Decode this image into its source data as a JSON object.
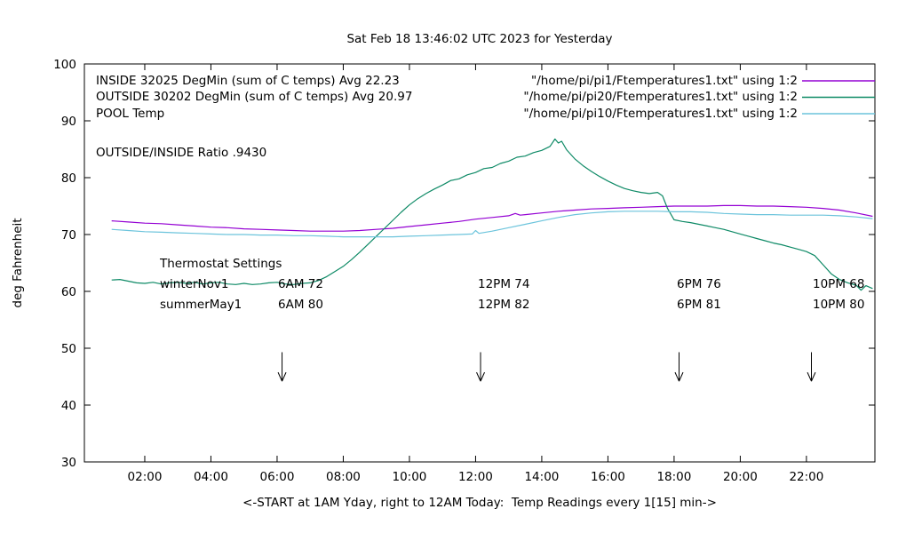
{
  "title": "Sat Feb 18 13:46:02 UTC 2023 for Yesterday",
  "axes": {
    "ylabel": "deg Fahrenheit",
    "xlabel": "<-START at 1AM Yday, right to 12AM Today:  Temp Readings every 1[15] min->"
  },
  "legend": {
    "rows": [
      {
        "label": "INSIDE 32025 DegMin (sum of C temps) Avg 22.23",
        "file": "\"/home/pi/pi1/Ftemperatures1.txt\" using 1:2",
        "color": "#9400d3"
      },
      {
        "label": "OUTSIDE 30202 DegMin (sum of C temps) Avg 20.97",
        "file": "\"/home/pi/pi20/Ftemperatures1.txt\" using 1:2",
        "color": "#0e8a66"
      },
      {
        "label": "POOL Temp",
        "file": "\"/home/pi/pi10/Ftemperatures1.txt\" using 1:2",
        "color": "#6cc4dc"
      }
    ]
  },
  "ratio_text": "OUTSIDE/INSIDE Ratio .9430",
  "thermostat": {
    "header": "Thermostat Settings",
    "rows": [
      {
        "name": "winterNov1",
        "c1": "6AM 72",
        "c2": "12PM 74",
        "c3": "6PM 76",
        "c4": "10PM 68"
      },
      {
        "name": "summerMay1",
        "c1": "6AM 80",
        "c2": "12PM 82",
        "c3": "6PM 81",
        "c4": "10PM 80"
      }
    ]
  },
  "chart_data": {
    "type": "line",
    "title": "Sat Feb 18 13:46:02 UTC 2023 for Yesterday",
    "xlabel": "<-START at 1AM Yday, right to 12AM Today:  Temp Readings every 1[15] min->",
    "ylabel": "deg Fahrenheit",
    "x_range": [
      0.175,
      24.07
    ],
    "y_range": [
      30,
      100
    ],
    "x_ticks": [
      {
        "h": 2,
        "label": "02:00"
      },
      {
        "h": 4,
        "label": "04:00"
      },
      {
        "h": 6,
        "label": "06:00"
      },
      {
        "h": 8,
        "label": "08:00"
      },
      {
        "h": 10,
        "label": "10:00"
      },
      {
        "h": 12,
        "label": "12:00"
      },
      {
        "h": 14,
        "label": "14:00"
      },
      {
        "h": 16,
        "label": "16:00"
      },
      {
        "h": 18,
        "label": "18:00"
      },
      {
        "h": 20,
        "label": "20:00"
      },
      {
        "h": 22,
        "label": "22:00"
      }
    ],
    "y_ticks": [
      30,
      40,
      50,
      60,
      70,
      80,
      90,
      100
    ],
    "arrows": {
      "x_hours": [
        6.15,
        12.15,
        18.15,
        22.15
      ],
      "y_from": 49.3,
      "y_to": 44.2
    },
    "series": [
      {
        "name": "INSIDE",
        "color": "#9400d3",
        "points": [
          [
            1,
            72.4
          ],
          [
            1.5,
            72.2
          ],
          [
            2,
            72.0
          ],
          [
            2.5,
            71.9
          ],
          [
            3,
            71.7
          ],
          [
            3.5,
            71.5
          ],
          [
            4,
            71.3
          ],
          [
            4.5,
            71.2
          ],
          [
            5,
            71.0
          ],
          [
            5.5,
            70.9
          ],
          [
            6,
            70.8
          ],
          [
            6.5,
            70.7
          ],
          [
            7,
            70.6
          ],
          [
            7.5,
            70.6
          ],
          [
            8,
            70.6
          ],
          [
            8.5,
            70.7
          ],
          [
            9,
            70.9
          ],
          [
            9.5,
            71.1
          ],
          [
            10,
            71.4
          ],
          [
            10.5,
            71.7
          ],
          [
            11,
            72.0
          ],
          [
            11.5,
            72.3
          ],
          [
            12,
            72.7
          ],
          [
            12.5,
            73.0
          ],
          [
            13,
            73.3
          ],
          [
            13.2,
            73.7
          ],
          [
            13.35,
            73.4
          ],
          [
            13.5,
            73.5
          ],
          [
            14,
            73.8
          ],
          [
            14.5,
            74.1
          ],
          [
            15,
            74.3
          ],
          [
            15.5,
            74.5
          ],
          [
            16,
            74.6
          ],
          [
            16.5,
            74.7
          ],
          [
            17,
            74.8
          ],
          [
            17.5,
            74.9
          ],
          [
            18,
            75.0
          ],
          [
            18.5,
            75.0
          ],
          [
            19,
            75.0
          ],
          [
            19.5,
            75.1
          ],
          [
            20,
            75.1
          ],
          [
            20.5,
            75.0
          ],
          [
            21,
            75.0
          ],
          [
            21.5,
            74.9
          ],
          [
            22,
            74.8
          ],
          [
            22.5,
            74.6
          ],
          [
            23,
            74.3
          ],
          [
            23.5,
            73.8
          ],
          [
            24,
            73.2
          ]
        ]
      },
      {
        "name": "OUTSIDE",
        "color": "#0e8a66",
        "points": [
          [
            1,
            62.0
          ],
          [
            1.25,
            62.1
          ],
          [
            1.5,
            61.8
          ],
          [
            1.75,
            61.5
          ],
          [
            2,
            61.4
          ],
          [
            2.25,
            61.6
          ],
          [
            2.5,
            61.3
          ],
          [
            2.75,
            61.5
          ],
          [
            3,
            61.6
          ],
          [
            3.25,
            61.4
          ],
          [
            3.5,
            61.6
          ],
          [
            3.75,
            61.3
          ],
          [
            4,
            61.5
          ],
          [
            4.25,
            61.6
          ],
          [
            4.5,
            61.3
          ],
          [
            4.75,
            61.2
          ],
          [
            5,
            61.4
          ],
          [
            5.25,
            61.2
          ],
          [
            5.5,
            61.3
          ],
          [
            5.75,
            61.5
          ],
          [
            6,
            61.6
          ],
          [
            6.25,
            61.3
          ],
          [
            6.5,
            61.2
          ],
          [
            6.75,
            61.4
          ],
          [
            7,
            61.5
          ],
          [
            7.25,
            61.9
          ],
          [
            7.5,
            62.6
          ],
          [
            7.75,
            63.5
          ],
          [
            8,
            64.4
          ],
          [
            8.25,
            65.6
          ],
          [
            8.5,
            66.9
          ],
          [
            8.75,
            68.3
          ],
          [
            9,
            69.7
          ],
          [
            9.25,
            71.1
          ],
          [
            9.5,
            72.5
          ],
          [
            9.75,
            73.9
          ],
          [
            10,
            75.2
          ],
          [
            10.25,
            76.3
          ],
          [
            10.5,
            77.2
          ],
          [
            10.75,
            78.0
          ],
          [
            11,
            78.7
          ],
          [
            11.25,
            79.5
          ],
          [
            11.5,
            79.8
          ],
          [
            11.75,
            80.5
          ],
          [
            12,
            80.9
          ],
          [
            12.25,
            81.6
          ],
          [
            12.5,
            81.8
          ],
          [
            12.75,
            82.5
          ],
          [
            13,
            82.9
          ],
          [
            13.25,
            83.6
          ],
          [
            13.5,
            83.8
          ],
          [
            13.75,
            84.4
          ],
          [
            14,
            84.8
          ],
          [
            14.25,
            85.5
          ],
          [
            14.4,
            86.8
          ],
          [
            14.5,
            86.1
          ],
          [
            14.6,
            86.4
          ],
          [
            14.75,
            84.9
          ],
          [
            15,
            83.3
          ],
          [
            15.25,
            82.1
          ],
          [
            15.5,
            81.1
          ],
          [
            15.75,
            80.2
          ],
          [
            16,
            79.4
          ],
          [
            16.25,
            78.7
          ],
          [
            16.5,
            78.1
          ],
          [
            16.75,
            77.7
          ],
          [
            17,
            77.4
          ],
          [
            17.25,
            77.2
          ],
          [
            17.5,
            77.4
          ],
          [
            17.65,
            76.8
          ],
          [
            17.8,
            74.6
          ],
          [
            18,
            72.6
          ],
          [
            18.25,
            72.3
          ],
          [
            18.5,
            72.1
          ],
          [
            18.75,
            71.8
          ],
          [
            19,
            71.5
          ],
          [
            19.25,
            71.2
          ],
          [
            19.5,
            70.9
          ],
          [
            19.75,
            70.5
          ],
          [
            20,
            70.1
          ],
          [
            20.25,
            69.7
          ],
          [
            20.5,
            69.3
          ],
          [
            20.75,
            68.9
          ],
          [
            21,
            68.5
          ],
          [
            21.25,
            68.2
          ],
          [
            21.5,
            67.8
          ],
          [
            21.75,
            67.4
          ],
          [
            22,
            67.0
          ],
          [
            22.25,
            66.3
          ],
          [
            22.5,
            64.7
          ],
          [
            22.75,
            63.1
          ],
          [
            23,
            62.1
          ],
          [
            23.25,
            61.5
          ],
          [
            23.5,
            61.1
          ],
          [
            23.65,
            60.2
          ],
          [
            23.8,
            61.0
          ],
          [
            24,
            60.5
          ]
        ]
      },
      {
        "name": "POOL",
        "color": "#6cc4dc",
        "points": [
          [
            1,
            70.9
          ],
          [
            1.5,
            70.7
          ],
          [
            2,
            70.5
          ],
          [
            2.5,
            70.4
          ],
          [
            3,
            70.3
          ],
          [
            3.5,
            70.2
          ],
          [
            4,
            70.1
          ],
          [
            4.5,
            70.0
          ],
          [
            5,
            70.0
          ],
          [
            5.5,
            69.9
          ],
          [
            6,
            69.9
          ],
          [
            6.5,
            69.8
          ],
          [
            7,
            69.8
          ],
          [
            7.5,
            69.7
          ],
          [
            8,
            69.6
          ],
          [
            8.5,
            69.6
          ],
          [
            9,
            69.6
          ],
          [
            9.5,
            69.6
          ],
          [
            10,
            69.7
          ],
          [
            10.5,
            69.8
          ],
          [
            11,
            69.9
          ],
          [
            11.5,
            70.0
          ],
          [
            11.9,
            70.1
          ],
          [
            12,
            70.7
          ],
          [
            12.1,
            70.2
          ],
          [
            12.5,
            70.6
          ],
          [
            13,
            71.2
          ],
          [
            13.5,
            71.8
          ],
          [
            14,
            72.4
          ],
          [
            14.5,
            73.0
          ],
          [
            15,
            73.5
          ],
          [
            15.5,
            73.8
          ],
          [
            16,
            74.0
          ],
          [
            16.5,
            74.1
          ],
          [
            17,
            74.1
          ],
          [
            17.5,
            74.1
          ],
          [
            18,
            74.0
          ],
          [
            18.5,
            74.0
          ],
          [
            19,
            73.9
          ],
          [
            19.5,
            73.7
          ],
          [
            20,
            73.6
          ],
          [
            20.5,
            73.5
          ],
          [
            21,
            73.5
          ],
          [
            21.5,
            73.4
          ],
          [
            22,
            73.4
          ],
          [
            22.5,
            73.4
          ],
          [
            23,
            73.3
          ],
          [
            23.5,
            73.1
          ],
          [
            24,
            72.8
          ]
        ]
      }
    ]
  }
}
